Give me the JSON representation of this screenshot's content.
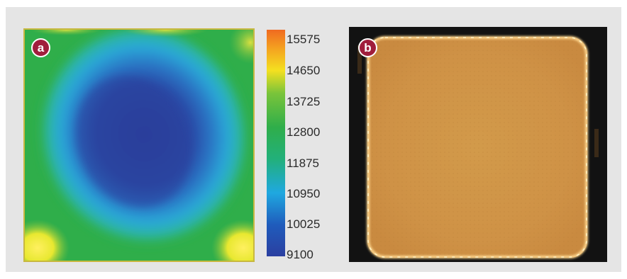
{
  "panel_a": {
    "label": "a",
    "colorbar": {
      "ticks": [
        "15575",
        "14650",
        "13725",
        "12800",
        "11875",
        "10950",
        "10025",
        "9100"
      ],
      "min": 9100,
      "max": 15575,
      "colors": [
        "#2b3fa0",
        "#1e6fc8",
        "#1fb3e0",
        "#25b060",
        "#34a853",
        "#f7e020",
        "#f49a20",
        "#f06a20"
      ]
    }
  },
  "panel_b": {
    "label": "b"
  }
}
